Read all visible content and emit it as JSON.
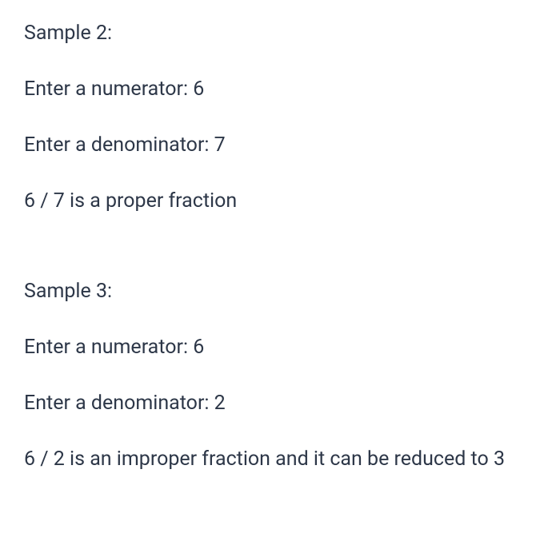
{
  "sample2": {
    "title": "Sample 2:",
    "numeratorLine": "Enter a numerator: 6",
    "denominatorLine": "Enter a denominator: 7",
    "resultLine": "6 / 7 is a proper fraction"
  },
  "sample3": {
    "title": "Sample 3:",
    "numeratorLine": "Enter a numerator: 6",
    "denominatorLine": "Enter a denominator: 2",
    "resultLine": "6 / 2 is an improper fraction and it can be reduced to 3"
  },
  "styling": {
    "textColor": "#2d3748",
    "backgroundColor": "#ffffff",
    "fontSize": 25,
    "lineSpacing": 35,
    "blockSpacing": 78
  }
}
